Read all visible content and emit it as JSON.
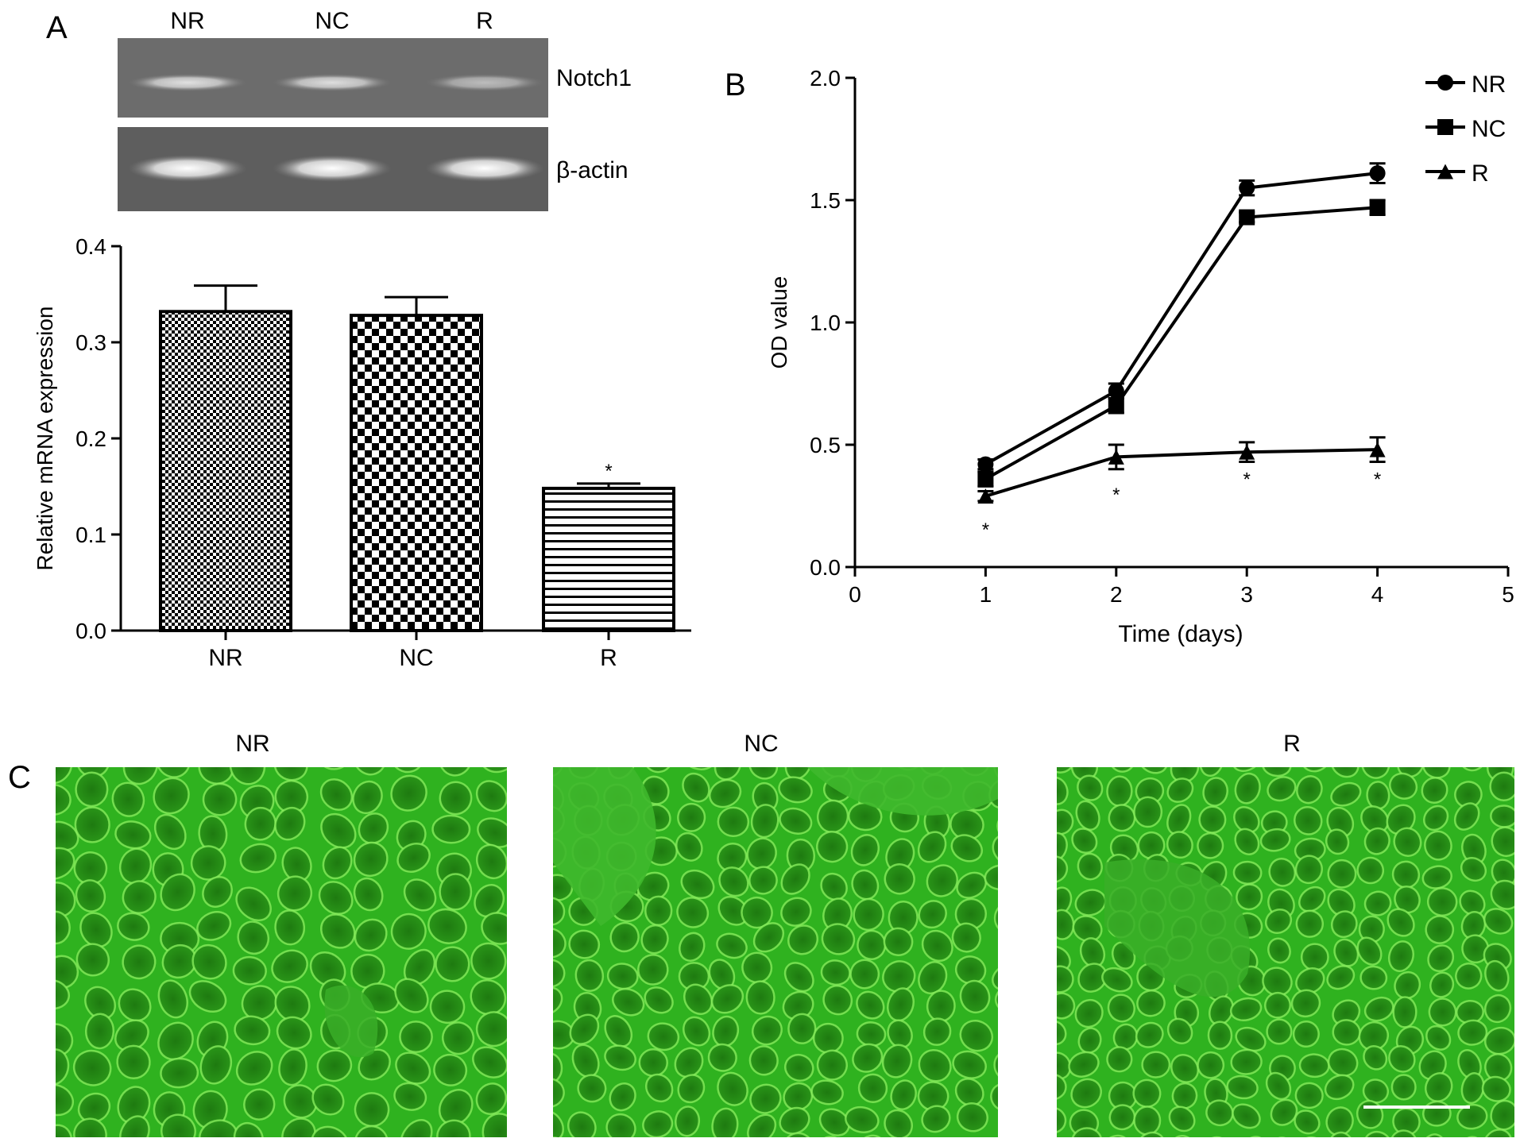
{
  "panel_labels": {
    "a": "A",
    "b": "B",
    "c": "C"
  },
  "gel": {
    "lanes": [
      "NR",
      "NC",
      "R"
    ],
    "bands": [
      {
        "label": "Notch1",
        "intensity": [
          0.8,
          0.78,
          0.55
        ]
      },
      {
        "label": "β-actin",
        "intensity": [
          1.0,
          1.0,
          1.0
        ]
      }
    ]
  },
  "chart_data": [
    {
      "type": "bar",
      "categories": [
        "NR",
        "NC",
        "R"
      ],
      "values": [
        0.332,
        0.328,
        0.148
      ],
      "errors": [
        0.027,
        0.019,
        0.005
      ],
      "significance": [
        "",
        "",
        "*"
      ],
      "ylabel": "Relative mRNA expression",
      "xlabel": "",
      "ylim": [
        0,
        0.4
      ],
      "yticks": [
        "0.0",
        "0.1",
        "0.2",
        "0.3",
        "0.4"
      ],
      "grid": false,
      "patterns": [
        "fine-checker",
        "coarse-checker",
        "horizontal-lines"
      ]
    },
    {
      "type": "line",
      "xlabel": "Time (days)",
      "ylabel": "OD value",
      "xlim": [
        0,
        5
      ],
      "ylim": [
        0,
        2.0
      ],
      "xticks": [
        "0",
        "1",
        "2",
        "3",
        "4",
        "5"
      ],
      "yticks": [
        "0.0",
        "0.5",
        "1.0",
        "1.5",
        "2.0"
      ],
      "x": [
        1,
        2,
        3,
        4
      ],
      "series": [
        {
          "name": "NR",
          "marker": "circle",
          "values": [
            0.42,
            0.72,
            1.55,
            1.61
          ],
          "errors": [
            0.02,
            0.03,
            0.03,
            0.04
          ]
        },
        {
          "name": "NC",
          "marker": "square",
          "values": [
            0.36,
            0.66,
            1.43,
            1.47
          ],
          "errors": [
            0.03,
            0.03,
            0.02,
            0.03
          ]
        },
        {
          "name": "R",
          "marker": "triangle",
          "values": [
            0.29,
            0.45,
            0.47,
            0.48
          ],
          "errors": [
            0.02,
            0.05,
            0.04,
            0.05
          ]
        }
      ],
      "significance": [
        "*",
        "*",
        "*",
        "*"
      ],
      "legend": "top-right",
      "grid": false
    }
  ],
  "micrographs": {
    "titles": [
      "NR",
      "NC",
      "R"
    ],
    "color": "#2fb21f",
    "scale_bar": true
  }
}
